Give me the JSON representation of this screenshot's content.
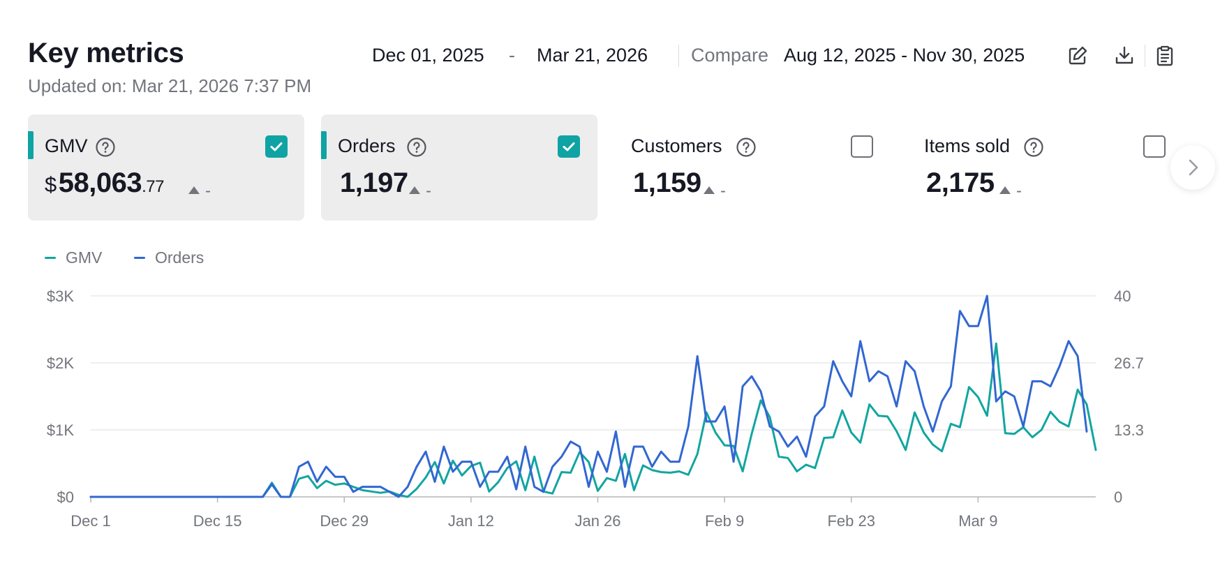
{
  "header": {
    "title": "Key metrics",
    "updated": "Updated on: Mar 21, 2026 7:37 PM",
    "date_start": "Dec 01, 2025",
    "date_sep": "-",
    "date_end": "Mar 21, 2026",
    "compare_label": "Compare",
    "compare_range": "Aug 12, 2025 - Nov 30, 2025",
    "icons": [
      "edit-icon",
      "download-icon",
      "clipboard-icon"
    ]
  },
  "cards": [
    {
      "name": "GMV",
      "currency": "$",
      "value_main": "58,063",
      "value_dec": ".77",
      "trend": "-",
      "selected": true,
      "accent": "#10a3a3"
    },
    {
      "name": "Orders",
      "currency": "",
      "value_main": "1,197",
      "value_dec": "",
      "trend": "-",
      "selected": true,
      "accent": "#10a3a3"
    },
    {
      "name": "Customers",
      "currency": "",
      "value_main": "1,159",
      "value_dec": "",
      "trend": "-",
      "selected": false
    },
    {
      "name": "Items sold",
      "currency": "",
      "value_main": "2,175",
      "value_dec": "",
      "trend": "-",
      "selected": false
    }
  ],
  "colors": {
    "gmv": "#12a5a0",
    "orders": "#3167d1",
    "accent": "#10a3a3"
  },
  "chart_data": {
    "type": "line",
    "legend_position": "top-left",
    "grid": true,
    "x_tick_labels": [
      "Dec 1",
      "Dec 15",
      "Dec 29",
      "Jan 12",
      "Jan 26",
      "Feb 9",
      "Feb 23",
      "Mar 9"
    ],
    "y_left": {
      "ticks": [
        "$0",
        "$1K",
        "$2K",
        "$3K"
      ],
      "range": [
        0,
        3000
      ]
    },
    "y_right": {
      "ticks": [
        "0",
        "13.3",
        "26.7",
        "40"
      ],
      "range": [
        0,
        40
      ]
    },
    "x_start": "2025-12-01",
    "x_end": "2026-03-21",
    "series": [
      {
        "name": "GMV",
        "axis": "left",
        "color": "#12a5a0",
        "values": [
          0,
          0,
          0,
          0,
          0,
          0,
          0,
          0,
          0,
          0,
          0,
          0,
          0,
          0,
          0,
          0,
          0,
          0,
          0,
          0,
          210,
          0,
          0,
          270,
          310,
          130,
          240,
          180,
          200,
          150,
          100,
          80,
          60,
          80,
          30,
          0,
          120,
          290,
          520,
          200,
          540,
          320,
          460,
          510,
          80,
          220,
          430,
          530,
          100,
          600,
          80,
          50,
          370,
          360,
          670,
          520,
          90,
          280,
          240,
          640,
          100,
          470,
          400,
          370,
          360,
          380,
          330,
          640,
          1260,
          960,
          770,
          760,
          380,
          940,
          1440,
          1190,
          600,
          580,
          380,
          480,
          430,
          880,
          890,
          1290,
          960,
          810,
          1380,
          1210,
          1200,
          980,
          700,
          1260,
          960,
          780,
          680,
          1090,
          1040,
          1640,
          1490,
          1210,
          2290,
          950,
          940,
          1040,
          890,
          1000,
          1270,
          1120,
          1050,
          1600,
          1380,
          700
        ]
      },
      {
        "name": "Orders",
        "axis": "right",
        "color": "#3167d1",
        "values": [
          0,
          0,
          0,
          0,
          0,
          0,
          0,
          0,
          0,
          0,
          0,
          0,
          0,
          0,
          0,
          0,
          0,
          0,
          0,
          0,
          2.5,
          0,
          0,
          6.0,
          7.0,
          3.0,
          6.0,
          4.0,
          4.0,
          1.0,
          2.0,
          2.0,
          2.0,
          1.0,
          0,
          2.0,
          6.0,
          9.0,
          3.0,
          10.0,
          5.0,
          7.0,
          7.0,
          2.0,
          5.0,
          5.0,
          8.0,
          1.5,
          10.0,
          2.0,
          1.0,
          6.0,
          8.0,
          11.0,
          10.0,
          2.0,
          9.0,
          5.0,
          13.0,
          2.0,
          10.0,
          10.0,
          6.0,
          9.0,
          7.0,
          7.0,
          14.0,
          28.0,
          15.0,
          15.0,
          18.0,
          7.0,
          22.0,
          24.0,
          21.0,
          14.0,
          13.0,
          10.0,
          12.0,
          8.0,
          16.0,
          18.0,
          27.0,
          23.0,
          20.0,
          31.0,
          23.0,
          25.0,
          24.0,
          18.0,
          27.0,
          25.0,
          18.0,
          13.0,
          19.0,
          22.0,
          37.0,
          34.0,
          34.0,
          40.0,
          19.0,
          21.0,
          20.0,
          14.0,
          23.0,
          23.0,
          22.0,
          26.0,
          31.0,
          28.0,
          13.0
        ]
      }
    ]
  }
}
